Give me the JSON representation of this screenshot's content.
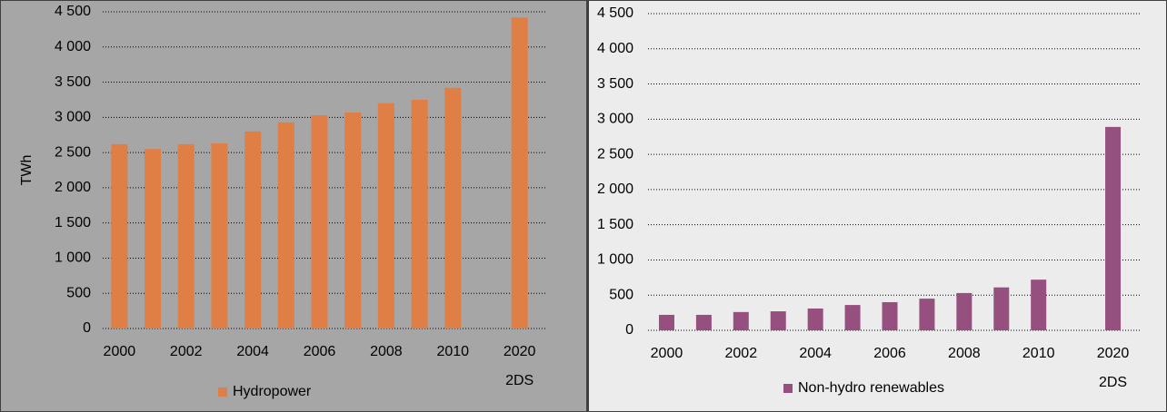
{
  "chart_data": [
    {
      "type": "bar",
      "y_label": "TWh",
      "categories": [
        "2000",
        null,
        "2002",
        null,
        "2004",
        null,
        "2006",
        null,
        "2008",
        null,
        "2010",
        null,
        "2020\n2DS"
      ],
      "series": [
        {
          "name": "Hydropower",
          "color": "#e07f45",
          "values": [
            2620,
            2550,
            2620,
            2630,
            2800,
            2930,
            3030,
            3070,
            3200,
            3250,
            3420,
            null,
            4420
          ]
        }
      ],
      "ylim": [
        0,
        4500
      ],
      "yticks": [
        0,
        500,
        {
          "value": 1000,
          "label": "1 000"
        },
        {
          "value": 1500,
          "label": "1 500"
        },
        {
          "value": 2000,
          "label": "2 000"
        },
        {
          "value": 2500,
          "label": "2 500"
        },
        {
          "value": 3000,
          "label": "3 000"
        },
        {
          "value": 3500,
          "label": "3 500"
        },
        {
          "value": 4000,
          "label": "4 000"
        },
        {
          "value": 4500,
          "label": "4 500"
        }
      ],
      "grid": true
    },
    {
      "type": "bar",
      "categories": [
        "2000",
        null,
        "2002",
        null,
        "2004",
        null,
        "2006",
        null,
        "2008",
        null,
        "2010",
        null,
        "2020\n2DS"
      ],
      "series": [
        {
          "name": "Non-hydro renewables",
          "color": "#95507f",
          "values": [
            220,
            220,
            260,
            270,
            310,
            360,
            400,
            450,
            530,
            610,
            720,
            null,
            2890
          ]
        }
      ],
      "ylim": [
        0,
        4500
      ],
      "yticks": [
        0,
        500,
        {
          "value": 1000,
          "label": "1 000"
        },
        {
          "value": 1500,
          "label": "1 500"
        },
        {
          "value": 2000,
          "label": "2 000"
        },
        {
          "value": 2500,
          "label": "2 500"
        },
        {
          "value": 3000,
          "label": "3 000"
        },
        {
          "value": 3500,
          "label": "3 500"
        },
        {
          "value": 4000,
          "label": "4 000"
        },
        {
          "value": 4500,
          "label": "4 500"
        }
      ],
      "grid": true
    }
  ]
}
